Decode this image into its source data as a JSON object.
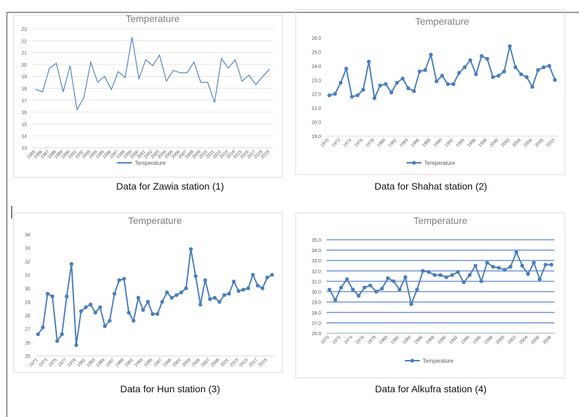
{
  "chart_data": [
    {
      "type": "line",
      "title": "Temperature",
      "categories": [
        "1985",
        "1986",
        "1987",
        "1988",
        "1989",
        "1990",
        "1991",
        "1992",
        "1993",
        "1994",
        "1995",
        "1996",
        "1997",
        "1998",
        "1999",
        "2000",
        "2001",
        "2002",
        "2003",
        "2004",
        "2005",
        "2006",
        "2007",
        "2008",
        "2009",
        "2010",
        "2011",
        "2012",
        "2013",
        "2014",
        "2015",
        "2016",
        "2017",
        "2018",
        "2019"
      ],
      "series": [
        {
          "name": "Temperature",
          "color": "#4f81bd",
          "values": [
            17.9,
            17.7,
            19.7,
            20.1,
            17.7,
            19.9,
            16.2,
            17.2,
            20.2,
            18.5,
            19.0,
            17.9,
            19.4,
            18.9,
            22.3,
            18.8,
            20.4,
            19.9,
            20.8,
            18.6,
            19.5,
            19.3,
            19.3,
            20.2,
            18.5,
            18.5,
            16.8,
            20.5,
            19.7,
            20.4,
            18.6,
            19.1,
            18.3,
            19.0,
            19.6
          ]
        }
      ],
      "ylim": [
        13,
        23
      ],
      "yticks": [
        13,
        14,
        15,
        16,
        17,
        18,
        19,
        20,
        21,
        22,
        23
      ],
      "grid": true,
      "grid_color": "#e4e4e4",
      "markers": false,
      "legend": "bottom"
    },
    {
      "type": "line",
      "title": "Temperature",
      "categories": [
        "1970",
        null,
        "1972",
        null,
        "1974",
        null,
        "1976",
        null,
        "1978",
        null,
        "1980",
        null,
        "1982",
        null,
        "1984",
        null,
        "1986",
        null,
        "1988",
        null,
        "1990",
        null,
        "1992",
        null,
        "1994",
        null,
        "1996",
        null,
        "1998",
        null,
        "2000",
        null,
        "2002",
        null,
        "2004",
        null,
        "2006",
        null,
        "2008",
        null,
        "2010"
      ],
      "series": [
        {
          "name": "Temperature",
          "color": "#4a7ebb",
          "values": [
            21.9,
            22.0,
            22.8,
            23.8,
            21.8,
            21.9,
            22.3,
            24.3,
            21.7,
            22.6,
            22.7,
            22.1,
            22.8,
            23.1,
            22.4,
            22.2,
            23.6,
            23.7,
            24.8,
            22.9,
            23.3,
            22.7,
            22.7,
            23.5,
            23.9,
            24.4,
            23.4,
            24.7,
            24.5,
            23.2,
            23.3,
            23.6,
            25.4,
            23.9,
            23.4,
            23.2,
            22.5,
            23.7,
            23.9,
            24.0,
            23.0
          ]
        }
      ],
      "ylim": [
        19,
        26
      ],
      "yticks": [
        {
          "value": 19,
          "label": "19.0"
        },
        {
          "value": 20,
          "label": "20.0"
        },
        {
          "value": 21,
          "label": "21.0"
        },
        {
          "value": 22,
          "label": "22.0"
        },
        {
          "value": 23,
          "label": "23.0"
        },
        {
          "value": 24,
          "label": "24.0"
        },
        {
          "value": 25,
          "label": "25.0"
        },
        {
          "value": 26,
          "label": "26.0"
        }
      ],
      "grid": false,
      "markers": true,
      "legend": "bottom"
    },
    {
      "type": "line",
      "title": "Temperature",
      "categories": [
        "1971",
        null,
        "1973",
        null,
        "1975",
        null,
        "1977",
        null,
        "1979",
        null,
        "1981",
        null,
        "1983",
        null,
        "1985",
        null,
        "1987",
        null,
        "1989",
        null,
        "1991",
        null,
        "1993",
        null,
        "1995",
        null,
        "1997",
        null,
        "1999",
        null,
        "2001",
        null,
        "2003",
        null,
        "2005",
        null,
        "2007",
        null,
        "2009",
        null,
        "2011",
        null,
        "2013",
        null,
        "2015",
        null,
        "2017",
        null,
        "2019",
        null
      ],
      "series": [
        {
          "name": "Temperature",
          "color": "#4a7ebb",
          "values": [
            26.6,
            27.1,
            29.6,
            29.4,
            26.1,
            26.6,
            29.4,
            31.8,
            25.8,
            28.3,
            28.6,
            28.8,
            28.2,
            28.6,
            27.2,
            27.6,
            29.6,
            30.6,
            30.7,
            28.2,
            27.6,
            29.3,
            28.4,
            29.0,
            28.1,
            28.1,
            29.0,
            29.7,
            29.3,
            29.5,
            29.7,
            30.0,
            32.9,
            30.9,
            28.8,
            30.6,
            29.2,
            29.3,
            29.0,
            29.5,
            29.6,
            30.5,
            29.8,
            29.9,
            30.0,
            31.0,
            30.2,
            30.0,
            30.8,
            31.0
          ]
        }
      ],
      "ylim": [
        25,
        34
      ],
      "yticks": [
        25,
        26,
        27,
        28,
        29,
        30,
        31,
        32,
        33,
        34
      ],
      "grid": false,
      "markers": true
    },
    {
      "type": "line",
      "title": "Temperature",
      "categories": [
        "1970",
        null,
        "1972",
        null,
        "1974",
        null,
        "1976",
        null,
        "1978",
        null,
        "1980",
        null,
        "1982",
        null,
        "1984",
        null,
        "1986",
        null,
        "1988",
        null,
        "1990",
        null,
        "1992",
        null,
        "1994",
        null,
        "1996",
        null,
        "1998",
        null,
        "2000",
        null,
        "2002",
        null,
        "2004",
        null,
        "2006",
        null,
        "2008"
      ],
      "series": [
        {
          "name": "Temperature",
          "color": "#4a7ebb",
          "values": [
            30.2,
            29.2,
            30.4,
            31.2,
            30.2,
            29.6,
            30.4,
            30.6,
            30.0,
            30.3,
            31.3,
            31.0,
            30.2,
            31.4,
            28.8,
            30.2,
            32.0,
            31.9,
            31.6,
            31.6,
            31.4,
            31.6,
            31.9,
            30.9,
            31.6,
            32.5,
            31.0,
            32.8,
            32.4,
            32.3,
            32.1,
            32.4,
            33.8,
            32.5,
            31.7,
            32.8,
            31.2,
            32.6,
            32.6
          ]
        }
      ],
      "ylim": [
        26,
        35
      ],
      "yticks": [
        {
          "value": 26,
          "label": "26.0"
        },
        {
          "value": 27,
          "label": "27.0"
        },
        {
          "value": 28,
          "label": "28.0"
        },
        {
          "value": 29,
          "label": "29.0"
        },
        {
          "value": 30,
          "label": "30.0"
        },
        {
          "value": 31,
          "label": "31.0"
        },
        {
          "value": 32,
          "label": "32.0"
        },
        {
          "value": 33,
          "label": "33.0"
        },
        {
          "value": 34,
          "label": "34.0"
        },
        {
          "value": 35,
          "label": "35.0"
        }
      ],
      "grid": true,
      "grid_color": "#6f93cf",
      "markers": true,
      "legend": "bottom"
    }
  ],
  "captions": [
    "Data for Zawia station (1)",
    "Data for Shahat station (2)",
    "Data for Hun station (3)",
    "Data for Alkufra station (4)"
  ]
}
